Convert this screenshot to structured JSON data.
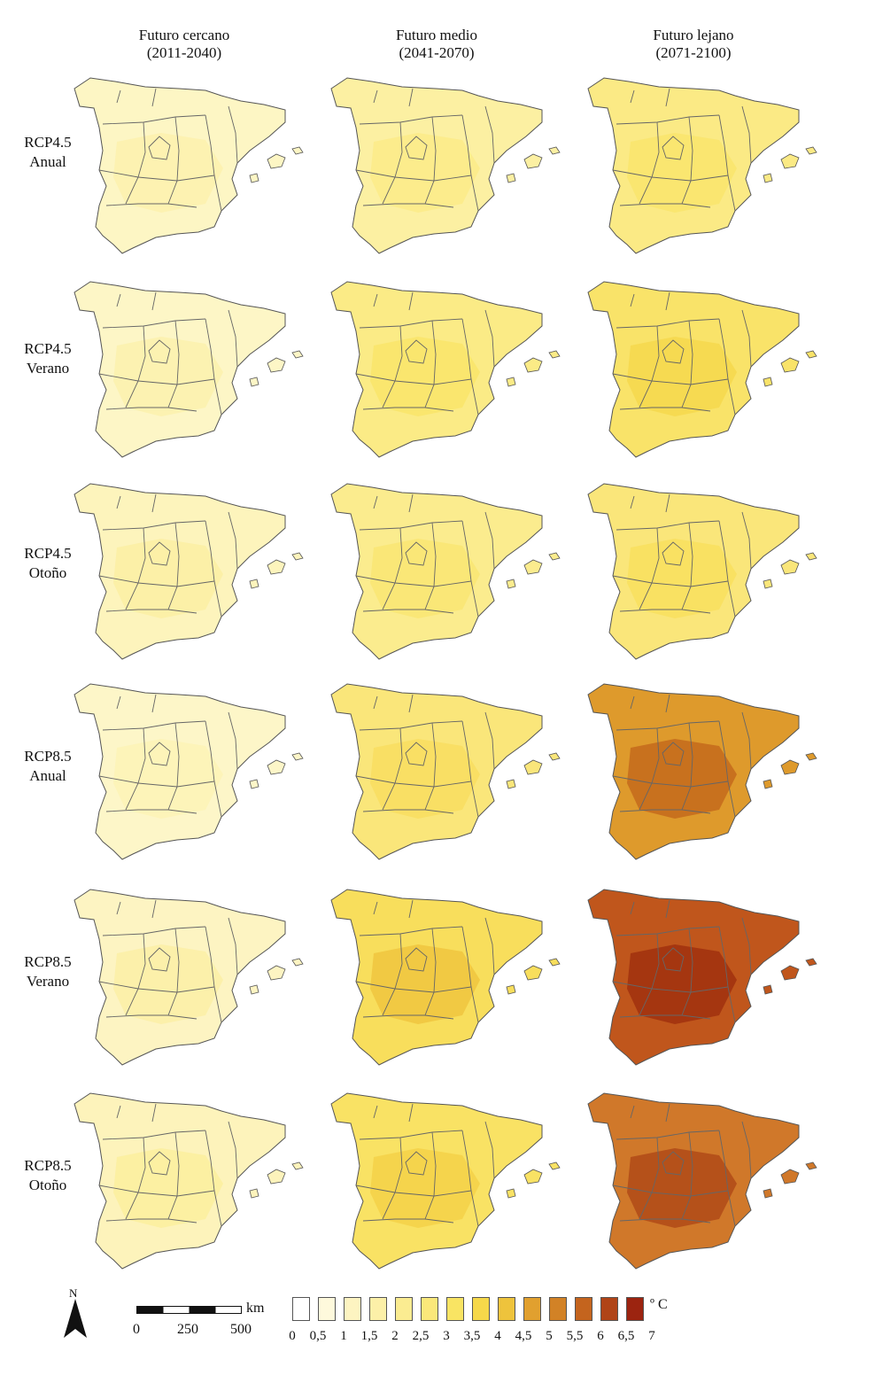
{
  "columns": [
    {
      "name": "Futuro cercano",
      "period": "(2011-2040)"
    },
    {
      "name": "Futuro medio",
      "period": "(2041-2070)"
    },
    {
      "name": "Futuro lejano",
      "period": "(2071-2100)"
    }
  ],
  "rows": [
    {
      "scenario": "RCP4.5",
      "season": "Anual"
    },
    {
      "scenario": "RCP4.5",
      "season": "Verano"
    },
    {
      "scenario": "RCP4.5",
      "season": "Otoño"
    },
    {
      "scenario": "RCP8.5",
      "season": "Anual"
    },
    {
      "scenario": "RCP8.5",
      "season": "Verano"
    },
    {
      "scenario": "RCP8.5",
      "season": "Otoño"
    }
  ],
  "maps": [
    [
      {
        "fill": "#fdf6c4",
        "patch": "#fdf1ae"
      },
      {
        "fill": "#fcf0a2",
        "patch": "#fbeb88"
      },
      {
        "fill": "#fbea85",
        "patch": "#f9e56c"
      }
    ],
    [
      {
        "fill": "#fdf6c6",
        "patch": "#fcf1ad"
      },
      {
        "fill": "#fbeb86",
        "patch": "#f9e56a"
      },
      {
        "fill": "#f9e369",
        "patch": "#f6d84d"
      }
    ],
    [
      {
        "fill": "#fdf4bc",
        "patch": "#fcefa3"
      },
      {
        "fill": "#fbec8e",
        "patch": "#f9e673"
      },
      {
        "fill": "#fae67a",
        "patch": "#f8df5e"
      }
    ],
    [
      {
        "fill": "#fdf6c8",
        "patch": "#fdf3b6"
      },
      {
        "fill": "#fae67a",
        "patch": "#f8dd60"
      },
      {
        "fill": "#de9a2c",
        "patch": "#c46a1c"
      }
    ],
    [
      {
        "fill": "#fdf4c2",
        "patch": "#fcefa6"
      },
      {
        "fill": "#f8de5c",
        "patch": "#f0c53e"
      },
      {
        "fill": "#c0561c",
        "patch": "#a0300e"
      }
    ],
    [
      {
        "fill": "#fdf3bb",
        "patch": "#fcee9e"
      },
      {
        "fill": "#f9e264",
        "patch": "#f4d148"
      },
      {
        "fill": "#d0782a",
        "patch": "#b04a18"
      }
    ]
  ],
  "legend": {
    "unit": "º C",
    "ticks": [
      "0",
      "0,5",
      "1",
      "1,5",
      "2",
      "2,5",
      "3",
      "3,5",
      "4",
      "4,5",
      "5",
      "5,5",
      "6",
      "6,5",
      "7"
    ],
    "colors": [
      "#ffffff",
      "#fef9dc",
      "#fdf4c1",
      "#fcf0a8",
      "#fbec91",
      "#fae87a",
      "#f9e463",
      "#f6d84a",
      "#eec33c",
      "#e1a02f",
      "#d28226",
      "#c4641e",
      "#b04417",
      "#9c2410"
    ]
  },
  "scale": {
    "labels": [
      "0",
      "250",
      "500"
    ],
    "unit": "km"
  },
  "north": {
    "letter": "N"
  }
}
